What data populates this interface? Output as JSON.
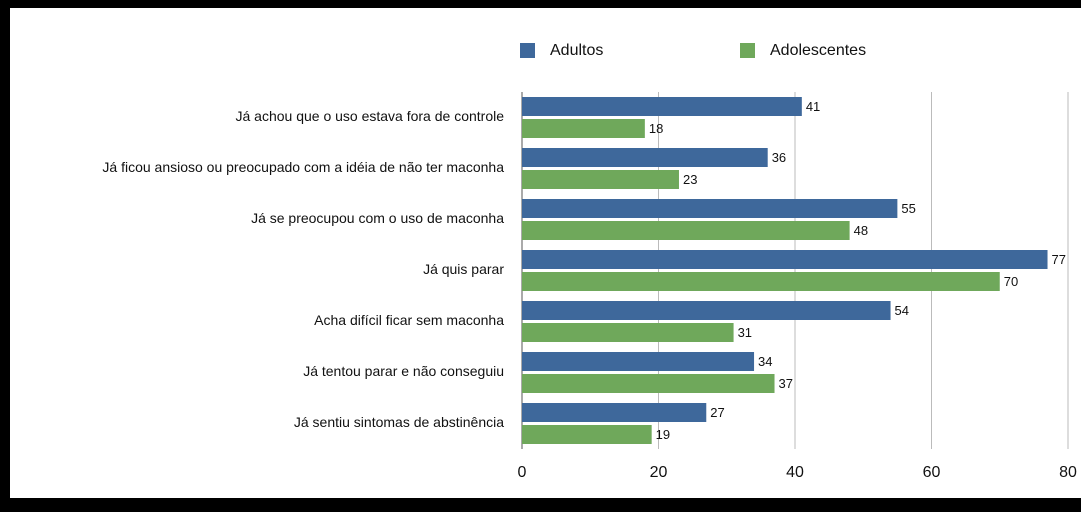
{
  "chart_data": {
    "type": "hbar",
    "categories": [
      "Já achou que o uso estava fora de controle",
      "Já ficou ansioso ou preocupado com a idéia de não ter maconha",
      "Já se preocupou com o uso de maconha",
      "Já quis parar",
      "Acha difícil ficar sem maconha",
      "Já tentou parar e não conseguiu",
      "Já sentiu sintomas de abstinência"
    ],
    "series": [
      {
        "name": "Adultos",
        "color": "#3e689b",
        "values": [
          41,
          36,
          55,
          77,
          54,
          34,
          27
        ]
      },
      {
        "name": "Adolescentes",
        "color": "#6fa85b",
        "values": [
          18,
          23,
          48,
          70,
          31,
          37,
          19
        ]
      }
    ],
    "xlim": [
      0,
      80
    ],
    "xticks": [
      0,
      20,
      40,
      60,
      80
    ],
    "grid": true,
    "legend": "top"
  }
}
